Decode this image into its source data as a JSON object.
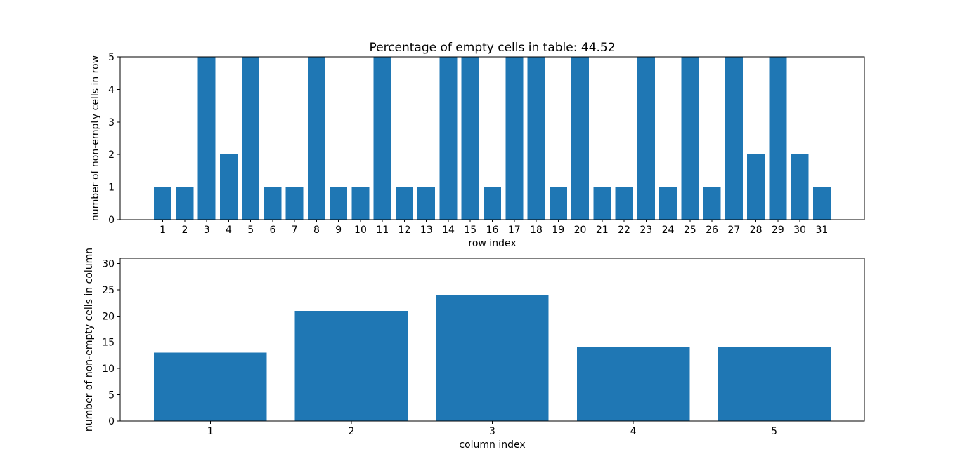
{
  "figure": {
    "background": "#ffffff",
    "text_color": "#000000",
    "spine_color": "#000000"
  },
  "chart_data": [
    {
      "type": "bar",
      "title": "Percentage of empty cells in table: 44.52",
      "xlabel": "row index",
      "ylabel": "number of non-empty cells in row",
      "categories": [
        "1",
        "2",
        "3",
        "4",
        "5",
        "6",
        "7",
        "8",
        "9",
        "10",
        "11",
        "12",
        "13",
        "14",
        "15",
        "16",
        "17",
        "18",
        "19",
        "20",
        "21",
        "22",
        "23",
        "24",
        "25",
        "26",
        "27",
        "28",
        "29",
        "30",
        "31"
      ],
      "values": [
        1,
        1,
        5,
        2,
        5,
        1,
        1,
        5,
        1,
        1,
        5,
        1,
        1,
        5,
        5,
        1,
        5,
        5,
        1,
        5,
        1,
        1,
        5,
        1,
        5,
        1,
        5,
        2,
        5,
        2,
        1
      ],
      "yticks": [
        0,
        1,
        2,
        3,
        4,
        5
      ],
      "ylim": [
        0,
        5
      ],
      "bar_width": 0.8,
      "bar_color": "#1f77b4",
      "grid": false,
      "legend": null
    },
    {
      "type": "bar",
      "title": "",
      "xlabel": "column index",
      "ylabel": "number of non-empty cells in column",
      "categories": [
        "1",
        "2",
        "3",
        "4",
        "5"
      ],
      "values": [
        13,
        21,
        24,
        14,
        14
      ],
      "yticks": [
        0,
        5,
        10,
        15,
        20,
        25,
        30
      ],
      "ylim": [
        0,
        31
      ],
      "bar_width": 0.8,
      "bar_color": "#1f77b4",
      "grid": false,
      "legend": null
    }
  ]
}
